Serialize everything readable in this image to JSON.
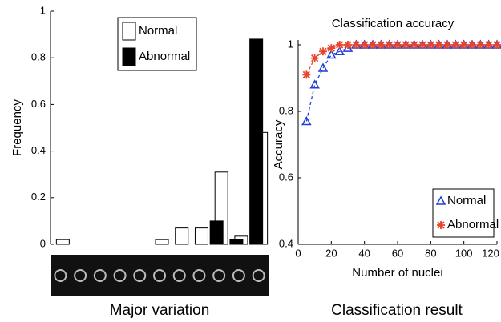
{
  "chart_data": [
    {
      "type": "bar",
      "ylabel": "Frequency",
      "caption": "Major variation",
      "categories": [
        null,
        null,
        null,
        null,
        null,
        null,
        null,
        null,
        null,
        null,
        null
      ],
      "series": [
        {
          "name": "Normal",
          "color": "#ffffff",
          "values": [
            0.02,
            0,
            0,
            0,
            0,
            0.02,
            0.07,
            0.07,
            0.31,
            0.035,
            0.48
          ]
        },
        {
          "name": "Abnormal",
          "color": "#000000",
          "values": [
            0,
            0,
            0,
            0,
            0,
            0,
            0,
            0,
            0.1,
            0.02,
            0.88
          ]
        }
      ],
      "ylim": [
        0,
        1
      ],
      "yticks": [
        0,
        0.2,
        0.4,
        0.6,
        0.8,
        1
      ],
      "legend": "top"
    },
    {
      "type": "line",
      "title": "Classification accuracy",
      "xlabel": "Number of nuclei",
      "ylabel": "Accuracy",
      "caption": "Classification result",
      "x": [
        5,
        10,
        15,
        20,
        25,
        30,
        35,
        40,
        45,
        50,
        55,
        60,
        65,
        70,
        75,
        80,
        85,
        90,
        95,
        100,
        105,
        110,
        115,
        120
      ],
      "series": [
        {
          "name": "Normal",
          "color": "#1f3fd8",
          "marker": "triangle",
          "values": [
            0.77,
            0.88,
            0.93,
            0.97,
            0.98,
            0.99,
            1,
            1,
            1,
            1,
            1,
            1,
            1,
            1,
            1,
            1,
            1,
            1,
            1,
            1,
            1,
            1,
            1,
            1
          ]
        },
        {
          "name": "Abnormal",
          "color": "#e8452c",
          "marker": "star",
          "values": [
            0.91,
            0.96,
            0.98,
            0.99,
            1,
            1,
            1,
            1,
            1,
            1,
            1,
            1,
            1,
            1,
            1,
            1,
            1,
            1,
            1,
            1,
            1,
            1,
            1,
            1
          ]
        }
      ],
      "xlim": [
        0,
        120
      ],
      "xticks": [
        0,
        20,
        40,
        60,
        80,
        100,
        120
      ],
      "ylim": [
        0.4,
        1
      ],
      "yticks": [
        0.4,
        0.6,
        0.8,
        1
      ],
      "legend": "lower right"
    }
  ]
}
